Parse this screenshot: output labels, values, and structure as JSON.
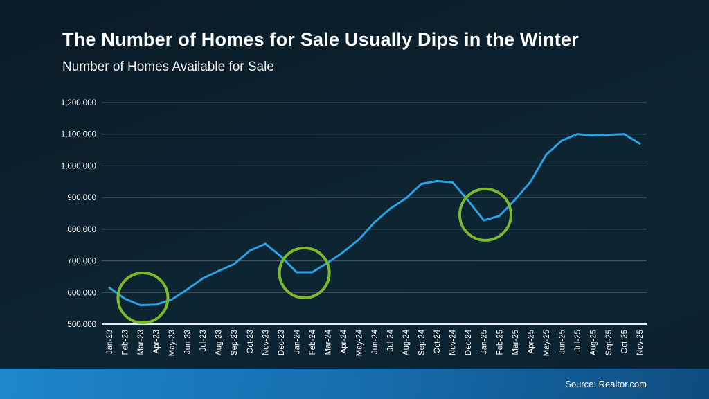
{
  "page": {
    "source": "Source: Realtor.com"
  },
  "chart_data": {
    "type": "line",
    "title": "The Number of Homes for Sale Usually Dips in the Winter",
    "subtitle": "Number of Homes Available for Sale",
    "categories": [
      "Jan-23",
      "Feb-23",
      "Mar-23",
      "Apr-23",
      "May-23",
      "Jun-23",
      "Jul-23",
      "Aug-23",
      "Sep-23",
      "Oct-23",
      "Nov-23",
      "Dec-23",
      "Jan-24",
      "Feb-24",
      "Mar-24",
      "Apr-24",
      "May-24",
      "Jun-24",
      "Jul-24",
      "Aug-24",
      "Sep-24",
      "Oct-24",
      "Nov-24",
      "Dec-24",
      "Jan-25",
      "Feb-25",
      "Mar-25",
      "Apr-25",
      "May-25",
      "Jun-25",
      "Jul-25",
      "Aug-25",
      "Sep-25",
      "Oct-25",
      "Nov-25"
    ],
    "series": [
      {
        "name": "Number of Homes Available for Sale",
        "color": "#2ba2e3",
        "values": [
          615000,
          580000,
          560000,
          562000,
          578000,
          610000,
          645000,
          668000,
          690000,
          732000,
          754000,
          714000,
          664000,
          664000,
          694000,
          728000,
          768000,
          822000,
          865000,
          897000,
          943000,
          952000,
          948000,
          890000,
          828000,
          842000,
          893000,
          950000,
          1035000,
          1080000,
          1100000,
          1096000,
          1098000,
          1100000,
          1070000
        ]
      }
    ],
    "ylim": [
      500000,
      1200000
    ],
    "yticks": [
      {
        "label": "500,000",
        "value": 500000
      },
      {
        "label": "600,000",
        "value": 600000
      },
      {
        "label": "700,000",
        "value": 700000
      },
      {
        "label": "800,000",
        "value": 800000
      },
      {
        "label": "900,000",
        "value": 900000
      },
      {
        "label": "1,000,000",
        "value": 1000000
      },
      {
        "label": "1,100,000",
        "value": 1100000
      },
      {
        "label": "1,200,000",
        "value": 1200000
      }
    ],
    "grid": "horizontal",
    "legend": "none",
    "colors": {
      "grid": "#4b5a64",
      "axis": "#e6edf2",
      "tick_text": "#ffffff",
      "highlight": "#7cba2d"
    },
    "annotations": [
      {
        "shape": "circle",
        "center_month_index": 2.15,
        "center_value": 583000,
        "radius_px": 36
      },
      {
        "shape": "circle",
        "center_month_index": 12.5,
        "center_value": 662000,
        "radius_px": 36
      },
      {
        "shape": "circle",
        "center_month_index": 24.1,
        "center_value": 846000,
        "radius_px": 37
      }
    ]
  }
}
